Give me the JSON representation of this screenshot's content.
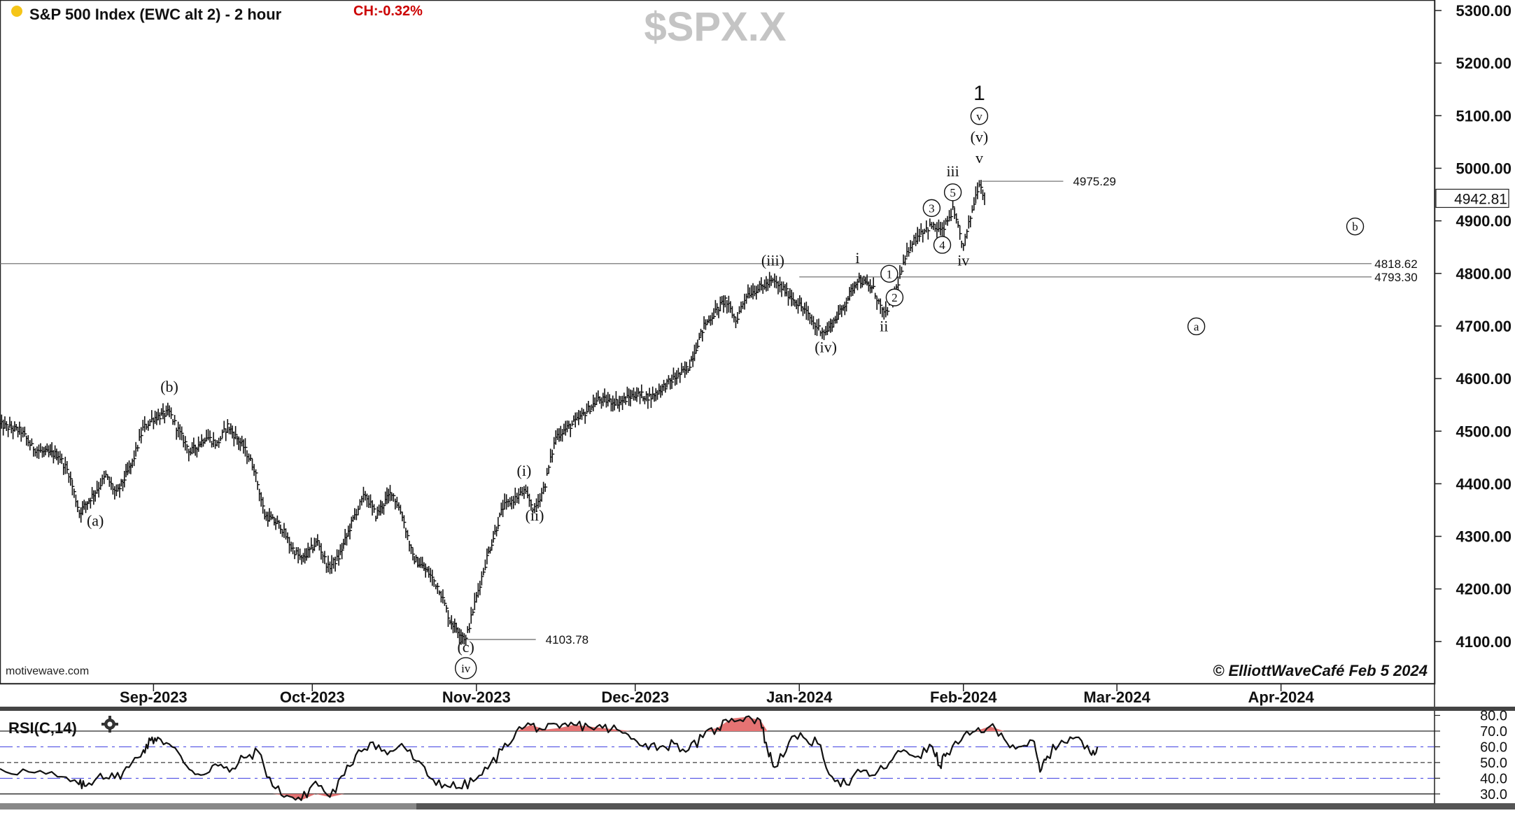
{
  "header": {
    "title": "S&P 500 Index (EWC alt 2) - 2 hour",
    "change": "CH:-0.32%",
    "watermark": "$SPX.X",
    "status_dot_color": "#f5c518"
  },
  "footer": {
    "site": "motivewave.com",
    "copyright": "© ElliottWaveCafé Feb 5 2024"
  },
  "chart_data": [
    {
      "type": "bar",
      "title": "S&P 500 Index (EWC alt 2) - 2 hour",
      "bar_style": "HLC bars",
      "ylim": [
        4020,
        5320
      ],
      "y_ticks": [
        4100,
        4200,
        4300,
        4400,
        4500,
        4600,
        4700,
        4800,
        4900,
        5000,
        5100,
        5200,
        5300
      ],
      "y_tick_labels": [
        "4100.00",
        "4200.00",
        "4300.00",
        "4400.00",
        "4500.00",
        "4600.00",
        "4700.00",
        "4800.00",
        "4900.00",
        "5000.00",
        "5100.00",
        "5200.00",
        "5300.00"
      ],
      "x_ticks": [
        {
          "label": "Sep-2023",
          "date": "2023-09-01"
        },
        {
          "label": "Oct-2023",
          "date": "2023-10-01"
        },
        {
          "label": "Nov-2023",
          "date": "2023-11-01"
        },
        {
          "label": "Dec-2023",
          "date": "2023-12-01"
        },
        {
          "label": "Jan-2024",
          "date": "2024-01-01"
        },
        {
          "label": "Feb-2024",
          "date": "2024-02-01"
        },
        {
          "label": "Mar-2024",
          "date": "2024-03-01"
        },
        {
          "label": "Apr-2024",
          "date": "2024-04-01"
        }
      ],
      "x_range": [
        "2023-08-03",
        "2024-04-30"
      ],
      "last_price": 4942.81,
      "last_price_label": "4942.81",
      "price_path": [
        [
          "2023-08-03",
          4512
        ],
        [
          "2023-08-07",
          4500
        ],
        [
          "2023-08-09",
          4470
        ],
        [
          "2023-08-11",
          4460
        ],
        [
          "2023-08-14",
          4455
        ],
        [
          "2023-08-16",
          4420
        ],
        [
          "2023-08-18",
          4345
        ],
        [
          "2023-08-21",
          4385
        ],
        [
          "2023-08-23",
          4415
        ],
        [
          "2023-08-25",
          4380
        ],
        [
          "2023-08-28",
          4440
        ],
        [
          "2023-08-30",
          4505
        ],
        [
          "2023-09-01",
          4525
        ],
        [
          "2023-09-04",
          4535
        ],
        [
          "2023-09-06",
          4495
        ],
        [
          "2023-09-08",
          4460
        ],
        [
          "2023-09-11",
          4490
        ],
        [
          "2023-09-13",
          4475
        ],
        [
          "2023-09-15",
          4510
        ],
        [
          "2023-09-18",
          4470
        ],
        [
          "2023-09-20",
          4430
        ],
        [
          "2023-09-22",
          4340
        ],
        [
          "2023-09-25",
          4320
        ],
        [
          "2023-09-27",
          4280
        ],
        [
          "2023-09-29",
          4255
        ],
        [
          "2023-10-02",
          4290
        ],
        [
          "2023-10-04",
          4240
        ],
        [
          "2023-10-06",
          4260
        ],
        [
          "2023-10-09",
          4340
        ],
        [
          "2023-10-11",
          4380
        ],
        [
          "2023-10-13",
          4340
        ],
        [
          "2023-10-16",
          4385
        ],
        [
          "2023-10-18",
          4340
        ],
        [
          "2023-10-20",
          4260
        ],
        [
          "2023-10-23",
          4230
        ],
        [
          "2023-10-25",
          4200
        ],
        [
          "2023-10-27",
          4140
        ],
        [
          "2023-10-30",
          4104
        ],
        [
          "2023-11-01",
          4185
        ],
        [
          "2023-11-03",
          4260
        ],
        [
          "2023-11-06",
          4355
        ],
        [
          "2023-11-08",
          4370
        ],
        [
          "2023-11-10",
          4385
        ],
        [
          "2023-11-12",
          4350
        ],
        [
          "2023-11-14",
          4400
        ],
        [
          "2023-11-16",
          4490
        ],
        [
          "2023-11-20",
          4520
        ],
        [
          "2023-11-24",
          4560
        ],
        [
          "2023-11-28",
          4555
        ],
        [
          "2023-12-01",
          4570
        ],
        [
          "2023-12-04",
          4565
        ],
        [
          "2023-12-07",
          4590
        ],
        [
          "2023-12-11",
          4620
        ],
        [
          "2023-12-14",
          4700
        ],
        [
          "2023-12-18",
          4750
        ],
        [
          "2023-12-20",
          4710
        ],
        [
          "2023-12-22",
          4760
        ],
        [
          "2023-12-27",
          4785
        ],
        [
          "2023-12-29",
          4770
        ],
        [
          "2024-01-02",
          4730
        ],
        [
          "2024-01-04",
          4700
        ],
        [
          "2024-01-06",
          4688
        ],
        [
          "2024-01-09",
          4730
        ],
        [
          "2024-01-12",
          4790
        ],
        [
          "2024-01-15",
          4770
        ],
        [
          "2024-01-17",
          4720
        ],
        [
          "2024-01-19",
          4760
        ],
        [
          "2024-01-20",
          4795
        ],
        [
          "2024-01-22",
          4855
        ],
        [
          "2024-01-24",
          4880
        ],
        [
          "2024-01-26",
          4890
        ],
        [
          "2024-01-28",
          4880
        ],
        [
          "2024-01-30",
          4920
        ],
        [
          "2024-02-01",
          4850
        ],
        [
          "2024-02-03",
          4935
        ],
        [
          "2024-02-04",
          4975
        ],
        [
          "2024-02-05",
          4942
        ]
      ],
      "horizontal_levels": [
        {
          "value": 4818.62,
          "label": "4818.62",
          "span": "full"
        },
        {
          "value": 4793.3,
          "label": "4793.30",
          "span": "from-jan-2024"
        },
        {
          "value": 4975.29,
          "label": "4975.29",
          "span": "from-high"
        },
        {
          "value": 4103.78,
          "label": "4103.78",
          "span": "from-low"
        }
      ],
      "wave_labels": [
        {
          "text": "(a)",
          "date": "2023-08-21",
          "price": 4320,
          "circled": false
        },
        {
          "text": "(b)",
          "date": "2023-09-04",
          "price": 4575,
          "circled": false
        },
        {
          "text": "(c)",
          "date": "2023-10-30",
          "price": 4080,
          "circled": false
        },
        {
          "text": "iv",
          "date": "2023-10-30",
          "price": 4040,
          "circled": true
        },
        {
          "text": "(i)",
          "date": "2023-11-10",
          "price": 4415,
          "circled": false
        },
        {
          "text": "(ii)",
          "date": "2023-11-12",
          "price": 4330,
          "circled": false
        },
        {
          "text": "(iii)",
          "date": "2023-12-27",
          "price": 4815,
          "circled": false
        },
        {
          "text": "(iv)",
          "date": "2024-01-06",
          "price": 4650,
          "circled": false
        },
        {
          "text": "i",
          "date": "2024-01-12",
          "price": 4820,
          "circled": false
        },
        {
          "text": "ii",
          "date": "2024-01-17",
          "price": 4690,
          "circled": false
        },
        {
          "text": "1",
          "date": "2024-01-18",
          "price": 4790,
          "circled": true
        },
        {
          "text": "2",
          "date": "2024-01-19",
          "price": 4745,
          "circled": true
        },
        {
          "text": "3",
          "date": "2024-01-26",
          "price": 4915,
          "circled": true
        },
        {
          "text": "4",
          "date": "2024-01-28",
          "price": 4845,
          "circled": true
        },
        {
          "text": "5",
          "date": "2024-01-30",
          "price": 4945,
          "circled": true
        },
        {
          "text": "iii",
          "date": "2024-01-30",
          "price": 4985,
          "circled": false
        },
        {
          "text": "iv",
          "date": "2024-02-01",
          "price": 4815,
          "circled": false
        },
        {
          "text": "v",
          "date": "2024-02-04",
          "price": 5010,
          "circled": false
        },
        {
          "text": "(v)",
          "date": "2024-02-04",
          "price": 5050,
          "circled": false
        },
        {
          "text": "v",
          "date": "2024-02-04",
          "price": 5090,
          "circled": true
        },
        {
          "text": "1",
          "date": "2024-02-04",
          "price": 5130,
          "circled": false
        },
        {
          "text": "a",
          "date": "2024-03-16",
          "price": 4690,
          "circled": true
        },
        {
          "text": "b",
          "date": "2024-04-15",
          "price": 4880,
          "circled": true
        }
      ]
    },
    {
      "type": "line",
      "title": "RSI(C,14)",
      "ylim": [
        25,
        82
      ],
      "y_tick_labels": [
        "80.0",
        "70.0",
        "60.0",
        "50.0",
        "40.0",
        "30.0"
      ],
      "y_ticks": [
        80,
        70,
        60,
        50,
        40,
        30
      ],
      "levels": {
        "overbought": 70,
        "oversold": 30,
        "mid": 50,
        "upper_dash": 60,
        "lower_dash": 40
      },
      "series": [
        {
          "values": [
            [
              0.0,
              46
            ],
            [
              0.02,
              44
            ],
            [
              0.04,
              41
            ],
            [
              0.055,
              36
            ],
            [
              0.06,
              35
            ],
            [
              0.07,
              43
            ],
            [
              0.08,
              40
            ],
            [
              0.09,
              47
            ],
            [
              0.1,
              58
            ],
            [
              0.105,
              64
            ],
            [
              0.11,
              66
            ],
            [
              0.12,
              60
            ],
            [
              0.13,
              48
            ],
            [
              0.14,
              42
            ],
            [
              0.15,
              49
            ],
            [
              0.16,
              44
            ],
            [
              0.17,
              53
            ],
            [
              0.18,
              57
            ],
            [
              0.19,
              35
            ],
            [
              0.2,
              29
            ],
            [
              0.21,
              26
            ],
            [
              0.22,
              38
            ],
            [
              0.23,
              28
            ],
            [
              0.24,
              42
            ],
            [
              0.25,
              58
            ],
            [
              0.26,
              63
            ],
            [
              0.27,
              55
            ],
            [
              0.28,
              62
            ],
            [
              0.29,
              51
            ],
            [
              0.3,
              40
            ],
            [
              0.31,
              36
            ],
            [
              0.32,
              34
            ],
            [
              0.33,
              38
            ],
            [
              0.34,
              46
            ],
            [
              0.35,
              58
            ],
            [
              0.36,
              70
            ],
            [
              0.37,
              74
            ],
            [
              0.38,
              71
            ],
            [
              0.39,
              72
            ],
            [
              0.4,
              74
            ],
            [
              0.41,
              73
            ],
            [
              0.42,
              72
            ],
            [
              0.43,
              71
            ],
            [
              0.44,
              65
            ],
            [
              0.45,
              62
            ],
            [
              0.46,
              60
            ],
            [
              0.47,
              62
            ],
            [
              0.48,
              58
            ],
            [
              0.49,
              66
            ],
            [
              0.5,
              72
            ],
            [
              0.51,
              78
            ],
            [
              0.52,
              79
            ],
            [
              0.53,
              77
            ],
            [
              0.535,
              58
            ],
            [
              0.54,
              47
            ],
            [
              0.55,
              63
            ],
            [
              0.56,
              66
            ],
            [
              0.57,
              62
            ],
            [
              0.58,
              41
            ],
            [
              0.59,
              36
            ],
            [
              0.6,
              44
            ],
            [
              0.61,
              42
            ],
            [
              0.62,
              50
            ],
            [
              0.63,
              58
            ],
            [
              0.64,
              54
            ],
            [
              0.65,
              60
            ],
            [
              0.655,
              48
            ],
            [
              0.66,
              56
            ],
            [
              0.67,
              64
            ],
            [
              0.68,
              70
            ],
            [
              0.69,
              73
            ],
            [
              0.7,
              65
            ],
            [
              0.71,
              60
            ],
            [
              0.72,
              64
            ],
            [
              0.725,
              44
            ],
            [
              0.73,
              54
            ],
            [
              0.74,
              64
            ],
            [
              0.75,
              66
            ],
            [
              0.76,
              56
            ],
            [
              0.765,
              60
            ]
          ]
        }
      ]
    }
  ]
}
